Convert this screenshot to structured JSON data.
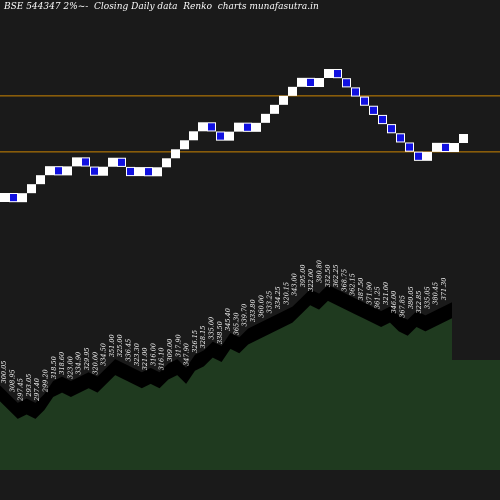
{
  "title": "BSE 544347 2%~-  Closing Daily data  Renko  charts munafasutra.in",
  "colors": {
    "background": "#1a1a1a",
    "brick_up": "#ffffff",
    "brick_down": "#1010e0",
    "brick_down_border": "#ffffff",
    "guide_line": "#cc8400",
    "volume_fill": "#1f3a1f",
    "volume_band": "#000000",
    "label_text": "#ffffff"
  },
  "chart_data": {
    "type": "renko",
    "title": "BSE 544347 2%~-  Closing Daily data  Renko  charts munafasutra.in",
    "brick_size": "2%",
    "bricks": [
      {
        "dir": "up",
        "close": 300.95
      },
      {
        "dir": "down",
        "close": 294.93
      },
      {
        "dir": "up",
        "close": 300.83
      },
      {
        "dir": "up",
        "close": 306.85
      },
      {
        "dir": "up",
        "close": 312.98
      },
      {
        "dir": "up",
        "close": 319.24
      },
      {
        "dir": "down",
        "close": 312.85
      },
      {
        "dir": "up",
        "close": 319.11
      },
      {
        "dir": "up",
        "close": 325.49
      },
      {
        "dir": "down",
        "close": 318.98
      },
      {
        "dir": "down",
        "close": 312.6
      },
      {
        "dir": "up",
        "close": 318.85
      },
      {
        "dir": "up",
        "close": 325.23
      },
      {
        "dir": "down",
        "close": 318.73
      },
      {
        "dir": "down",
        "close": 312.35
      },
      {
        "dir": "up",
        "close": 318.6
      },
      {
        "dir": "down",
        "close": 312.23
      },
      {
        "dir": "up",
        "close": 318.47
      },
      {
        "dir": "up",
        "close": 324.84
      },
      {
        "dir": "up",
        "close": 331.34
      },
      {
        "dir": "up",
        "close": 337.96
      },
      {
        "dir": "up",
        "close": 344.72
      },
      {
        "dir": "up",
        "close": 351.62
      },
      {
        "dir": "down",
        "close": 344.58
      },
      {
        "dir": "down",
        "close": 337.69
      },
      {
        "dir": "up",
        "close": 344.44
      },
      {
        "dir": "up",
        "close": 351.33
      },
      {
        "dir": "down",
        "close": 344.31
      },
      {
        "dir": "up",
        "close": 351.19
      },
      {
        "dir": "up",
        "close": 358.21
      },
      {
        "dir": "up",
        "close": 365.38
      },
      {
        "dir": "up",
        "close": 372.69
      },
      {
        "dir": "up",
        "close": 380.14
      },
      {
        "dir": "up",
        "close": 387.74
      },
      {
        "dir": "down",
        "close": 379.99
      },
      {
        "dir": "up",
        "close": 387.59
      },
      {
        "dir": "up",
        "close": 395.34
      },
      {
        "dir": "down",
        "close": 387.43
      },
      {
        "dir": "down",
        "close": 379.68
      },
      {
        "dir": "down",
        "close": 372.09
      },
      {
        "dir": "down",
        "close": 364.65
      },
      {
        "dir": "down",
        "close": 357.36
      },
      {
        "dir": "down",
        "close": 350.21
      },
      {
        "dir": "down",
        "close": 343.21
      },
      {
        "dir": "down",
        "close": 336.34
      },
      {
        "dir": "down",
        "close": 329.61
      },
      {
        "dir": "down",
        "close": 323.02
      },
      {
        "dir": "up",
        "close": 329.48
      },
      {
        "dir": "up",
        "close": 336.07
      },
      {
        "dir": "down",
        "close": 329.35
      },
      {
        "dir": "up",
        "close": 335.94
      },
      {
        "dir": "up",
        "close": 342.66
      }
    ],
    "horizontal_lines": [
      {
        "value": 372.69
      },
      {
        "value": 329.48
      }
    ],
    "price_labels": [
      "300.05",
      "308.95",
      "297.45",
      "293.05",
      "297.40",
      "299.20",
      "318.50",
      "318.60",
      "323.00",
      "334.90",
      "329.95",
      "320.00",
      "334.50",
      "351.00",
      "325.00",
      "336.45",
      "323.30",
      "321.00",
      "316.00",
      "316.10",
      "309.00",
      "317.90",
      "347.90",
      "326.15",
      "328.15",
      "335.00",
      "338.50",
      "345.40",
      "365.30",
      "339.70",
      "333.80",
      "360.00",
      "333.25",
      "334.25",
      "320.15",
      "343.00",
      "395.00",
      "322.00",
      "380.80",
      "332.50",
      "362.25",
      "368.75",
      "362.15",
      "387.50",
      "371.90",
      "361.25",
      "321.00",
      "346.00",
      "367.85",
      "380.05",
      "322.85",
      "335.05",
      "380.45",
      "371.30"
    ],
    "volume": [
      0.9,
      0.8,
      0.7,
      0.75,
      0.7,
      0.8,
      0.95,
      1.0,
      0.95,
      1.0,
      1.05,
      1.0,
      1.1,
      1.2,
      1.15,
      1.1,
      1.05,
      1.1,
      1.05,
      1.15,
      1.2,
      1.1,
      1.25,
      1.3,
      1.4,
      1.35,
      1.5,
      1.45,
      1.55,
      1.6,
      1.65,
      1.7,
      1.75,
      1.8,
      1.9,
      2.0,
      1.95,
      2.05,
      2.0,
      1.95,
      1.9,
      1.85,
      1.8,
      1.75,
      1.8,
      1.7,
      1.65,
      1.75,
      1.7,
      1.75,
      1.8,
      1.85
    ]
  }
}
